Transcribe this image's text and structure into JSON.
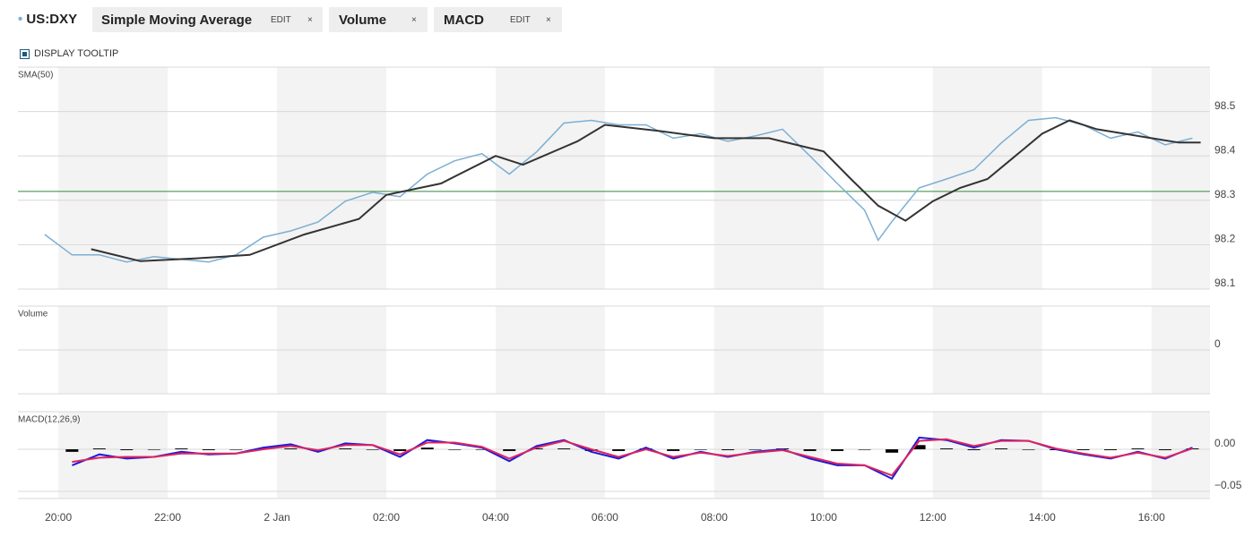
{
  "toolbar": {
    "edit": "EDIT",
    "close": "×",
    "volume": "Volume"
  },
  "tooltip_toggle": "DISPLAY TOOLTIP",
  "chart_data": [
    {
      "type": "line",
      "title": "SMA(50)",
      "xlim": [
        -0.74,
        21.07
      ],
      "ylim": [
        98.1,
        98.6
      ],
      "yticks": [
        98.1,
        98.2,
        98.3,
        98.4,
        98.5
      ],
      "reference_line": {
        "value": 98.32,
        "color": "#2e8b3a"
      },
      "series": [
        {
          "name": "US:DXY",
          "color": "#7bafd4",
          "x": [
            -0.25,
            0.25,
            0.75,
            1.25,
            1.75,
            2.25,
            2.75,
            3.25,
            3.75,
            4.25,
            4.75,
            5.25,
            5.75,
            6.25,
            6.75,
            7.25,
            7.75,
            8.25,
            8.75,
            9.25,
            9.75,
            10.25,
            10.75,
            11.25,
            11.75,
            12.25,
            12.75,
            13.25,
            13.75,
            14.25,
            14.75,
            15,
            15.25,
            15.75,
            16.25,
            16.75,
            17.25,
            17.75,
            18.25,
            18.75,
            19.25,
            19.75,
            20.25,
            20.75
          ],
          "values": [
            98.223,
            98.177,
            98.177,
            98.161,
            98.173,
            98.167,
            98.161,
            98.177,
            98.217,
            98.231,
            98.251,
            98.298,
            98.318,
            98.308,
            98.359,
            98.389,
            98.405,
            98.359,
            98.409,
            98.474,
            98.48,
            98.47,
            98.47,
            98.44,
            98.45,
            98.433,
            98.445,
            98.46,
            98.4,
            98.338,
            98.278,
            98.21,
            98.252,
            98.328,
            98.348,
            98.369,
            98.429,
            98.48,
            98.486,
            98.47,
            98.44,
            98.454,
            98.425,
            98.44
          ]
        },
        {
          "name": "Simple Moving Average",
          "color": "#333333",
          "x": [
            0.6,
            1.5,
            2.5,
            3.5,
            4.5,
            5.5,
            6,
            7,
            8,
            8.5,
            9.5,
            10,
            11,
            12,
            13,
            14,
            14.5,
            15,
            15.5,
            16,
            16.5,
            17,
            17.5,
            18,
            18.5,
            19,
            19.5,
            20,
            20.5,
            20.9
          ],
          "values": [
            98.19,
            98.163,
            98.169,
            98.177,
            98.223,
            98.258,
            98.312,
            98.338,
            98.4,
            98.38,
            98.433,
            98.47,
            98.456,
            98.44,
            98.44,
            98.41,
            98.348,
            98.288,
            98.254,
            98.298,
            98.328,
            98.348,
            98.399,
            98.45,
            98.48,
            98.46,
            98.45,
            98.44,
            98.43,
            98.43
          ]
        }
      ]
    },
    {
      "type": "bar",
      "title": "Volume",
      "ylim": [
        -1,
        1
      ],
      "yticks": [
        0
      ]
    },
    {
      "type": "line",
      "title": "MACD(12,26,9)",
      "xlim": [
        -0.74,
        21.07
      ],
      "ylim": [
        -0.0585,
        0.0447
      ],
      "yticks": [
        {
          "value": 0,
          "label": "0.00"
        },
        {
          "value": -0.05,
          "label": "−0.05"
        }
      ],
      "xticks": [
        {
          "value": 0,
          "label": "20:00"
        },
        {
          "value": 2,
          "label": "22:00"
        },
        {
          "value": 4,
          "label": "2 Jan"
        },
        {
          "value": 6,
          "label": "02:00"
        },
        {
          "value": 8,
          "label": "04:00"
        },
        {
          "value": 10,
          "label": "06:00"
        },
        {
          "value": 12,
          "label": "08:00"
        },
        {
          "value": 14,
          "label": "10:00"
        },
        {
          "value": 16,
          "label": "12:00"
        },
        {
          "value": 18,
          "label": "14:00"
        },
        {
          "value": 20,
          "label": "16:00"
        }
      ],
      "series": [
        {
          "type": "bar",
          "color": "#000000",
          "x": [
            0.25,
            0.75,
            1.25,
            1.75,
            2.25,
            2.75,
            3.25,
            3.75,
            4.25,
            4.75,
            5.25,
            5.75,
            6.25,
            6.75,
            7.25,
            7.75,
            8.25,
            8.75,
            9.25,
            9.75,
            10.25,
            10.75,
            11.25,
            11.75,
            12.25,
            12.75,
            13.25,
            13.75,
            14.25,
            14.75,
            15.25,
            15.75,
            16.25,
            16.75,
            17.25,
            17.75,
            18.25,
            18.75,
            19.25,
            19.75,
            20.25,
            20.75
          ],
          "values": [
            -0.003,
            0.001,
            -0.001,
            0,
            0.001,
            -0.001,
            0,
            0.001,
            0.001,
            -0.001,
            0.001,
            0,
            -0.002,
            0.002,
            0,
            0,
            -0.002,
            0.001,
            0.001,
            -0.002,
            -0.002,
            0.001,
            -0.002,
            0,
            -0.001,
            0,
            0.001,
            -0.002,
            -0.002,
            0,
            -0.004,
            0.005,
            0.001,
            -0.001,
            0.001,
            0,
            -0.001,
            -0.001,
            -0.001,
            0.001,
            -0.001,
            0.001
          ]
        },
        {
          "name": "MACD",
          "color": "#1a1adb",
          "x": [
            0.25,
            0.75,
            1.25,
            1.75,
            2.25,
            2.75,
            3.25,
            3.75,
            4.25,
            4.75,
            5.25,
            5.75,
            6.25,
            6.75,
            7.25,
            7.75,
            8.25,
            8.75,
            9.25,
            9.75,
            10.25,
            10.75,
            11.25,
            11.75,
            12.25,
            12.75,
            13.25,
            13.75,
            14.25,
            14.75,
            15.25,
            15.75,
            16.25,
            16.75,
            17.25,
            17.75,
            18.25,
            18.75,
            19.25,
            19.75,
            20.25,
            20.75
          ],
          "values": [
            -0.019,
            -0.006,
            -0.011,
            -0.009,
            -0.003,
            -0.006,
            -0.005,
            0.002,
            0.006,
            -0.003,
            0.007,
            0.005,
            -0.009,
            0.011,
            0.007,
            0.002,
            -0.014,
            0.004,
            0.011,
            -0.003,
            -0.011,
            0.002,
            -0.011,
            -0.003,
            -0.009,
            -0.003,
            0,
            -0.011,
            -0.019,
            -0.019,
            -0.035,
            0.014,
            0.011,
            0.002,
            0.011,
            0.01,
            0,
            -0.006,
            -0.011,
            -0.003,
            -0.011,
            0.002
          ]
        },
        {
          "color": "#e0245e",
          "x": [
            0.25,
            0.75,
            1.25,
            1.75,
            2.25,
            2.75,
            3.25,
            3.75,
            4.25,
            4.75,
            5.25,
            5.75,
            6.25,
            6.75,
            7.25,
            7.75,
            8.25,
            8.75,
            9.25,
            9.75,
            10.25,
            10.75,
            11.25,
            11.75,
            12.25,
            12.75,
            13.25,
            13.75,
            14.25,
            14.75,
            15.25,
            15.75,
            16.25,
            16.75,
            17.25,
            17.75,
            18.25,
            18.75,
            19.25,
            19.75,
            20.25,
            20.75
          ],
          "values": [
            -0.015,
            -0.01,
            -0.009,
            -0.009,
            -0.005,
            -0.005,
            -0.005,
            0,
            0.004,
            -0.001,
            0.005,
            0.005,
            -0.006,
            0.008,
            0.008,
            0.003,
            -0.011,
            0.002,
            0.01,
            0,
            -0.009,
            0,
            -0.009,
            -0.004,
            -0.008,
            -0.004,
            -0.001,
            -0.009,
            -0.017,
            -0.019,
            -0.031,
            0.01,
            0.012,
            0.004,
            0.01,
            0.01,
            0.001,
            -0.005,
            -0.01,
            -0.004,
            -0.01,
            0.001
          ]
        }
      ]
    }
  ]
}
